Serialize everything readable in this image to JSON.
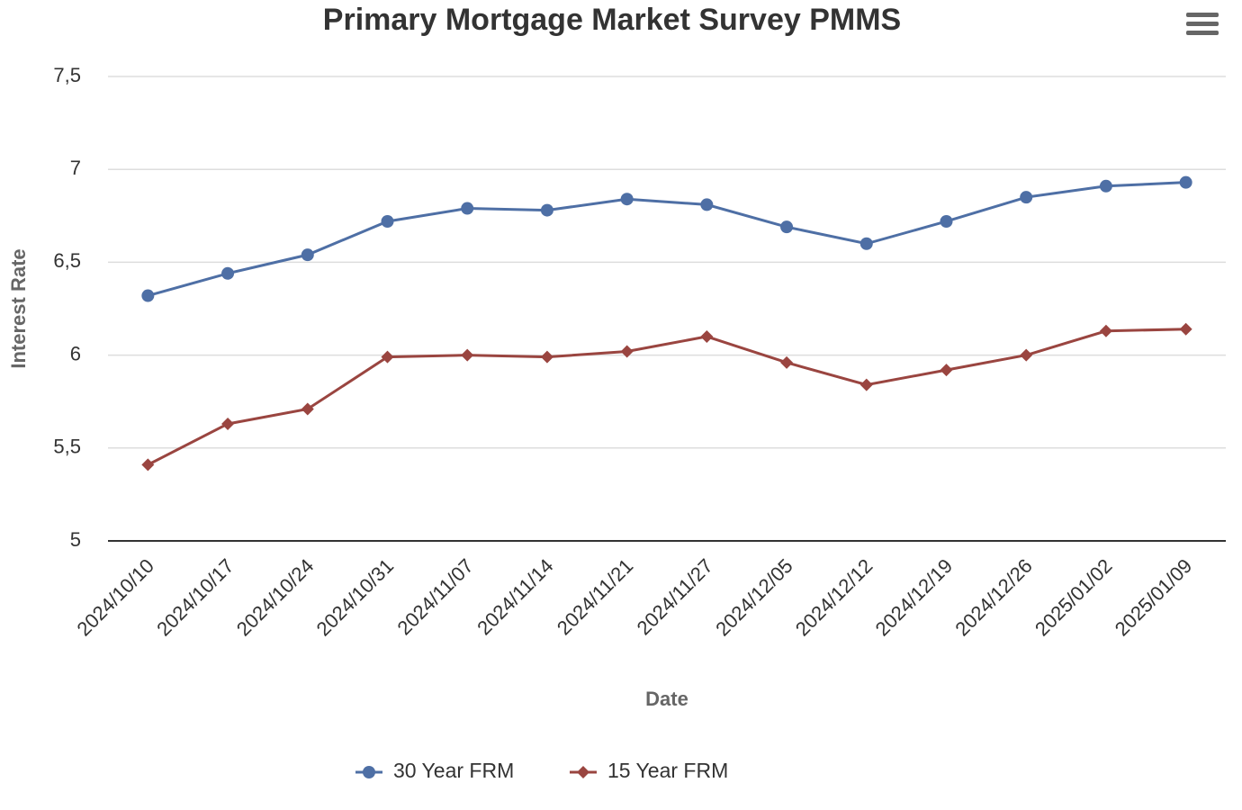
{
  "chart_data": {
    "type": "line",
    "title": "Primary Mortgage Market Survey PMMS",
    "x_label": "Date",
    "y_label": "Interest Rate",
    "categories": [
      "2024/10/10",
      "2024/10/17",
      "2024/10/24",
      "2024/10/31",
      "2024/11/07",
      "2024/11/14",
      "2024/11/21",
      "2024/11/27",
      "2024/12/05",
      "2024/12/12",
      "2024/12/19",
      "2024/12/26",
      "2025/01/02",
      "2025/01/09"
    ],
    "series": [
      {
        "name": "30 Year FRM",
        "color": "#4e6fa5",
        "marker": "circle",
        "values": [
          6.32,
          6.44,
          6.54,
          6.72,
          6.79,
          6.78,
          6.84,
          6.81,
          6.69,
          6.6,
          6.72,
          6.85,
          6.91,
          6.93
        ]
      },
      {
        "name": "15 Year FRM",
        "color": "#9a4540",
        "marker": "diamond",
        "values": [
          5.41,
          5.63,
          5.71,
          5.99,
          6.0,
          5.99,
          6.02,
          6.1,
          5.96,
          5.84,
          5.92,
          6.0,
          6.13,
          6.14
        ]
      }
    ],
    "ylim": [
      5,
      7.5
    ],
    "yticks": [
      5,
      {
        "value": 5.5,
        "label": "5,5"
      },
      6,
      {
        "value": 6.5,
        "label": "6,5"
      },
      7,
      {
        "value": 7.5,
        "label": "7,5"
      }
    ],
    "grid": true,
    "legend": "bottom"
  }
}
